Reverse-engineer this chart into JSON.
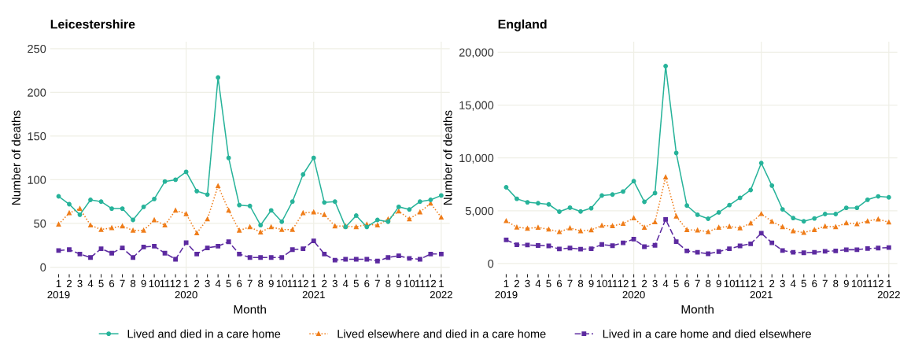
{
  "chart_data": [
    {
      "type": "line",
      "title": "Leicestershire",
      "xlabel": "Month",
      "ylabel": "Number of deaths",
      "categories": [
        "1\n2019",
        "2",
        "3",
        "4",
        "5",
        "6",
        "7",
        "8",
        "9",
        "10",
        "11",
        "12",
        "1\n2020",
        "2",
        "3",
        "4",
        "5",
        "6",
        "7",
        "8",
        "9",
        "10",
        "11",
        "12",
        "1\n2021",
        "2",
        "3",
        "4",
        "5",
        "6",
        "7",
        "8",
        "9",
        "10",
        "11",
        "12",
        "1\n2022"
      ],
      "series": [
        {
          "name": "Lived and died in a care home",
          "color": "#27b39a",
          "marker": "circle",
          "line_style": "solid",
          "values": [
            81,
            72,
            60,
            77,
            75,
            67,
            67,
            54,
            69,
            78,
            98,
            100,
            109,
            87,
            83,
            217,
            125,
            71,
            70,
            48,
            65,
            52,
            75,
            106,
            125,
            74,
            75,
            46,
            59,
            46,
            54,
            52,
            69,
            66,
            75,
            77,
            82
          ]
        },
        {
          "name": "Lived elsewhere and died in a care home",
          "color": "#ef7d1a",
          "marker": "triangle",
          "line_style": "dotted",
          "values": [
            49,
            62,
            67,
            48,
            43,
            45,
            47,
            42,
            42,
            54,
            48,
            65,
            61,
            39,
            55,
            93,
            65,
            42,
            46,
            40,
            46,
            43,
            43,
            62,
            63,
            60,
            47,
            47,
            46,
            49,
            48,
            55,
            64,
            55,
            63,
            73,
            57
          ]
        },
        {
          "name": "Lived in a care home and died elsewhere",
          "color": "#5c2aa0",
          "marker": "square",
          "line_style": "dashed",
          "values": [
            19,
            20,
            15,
            11,
            21,
            16,
            22,
            11,
            23,
            24,
            16,
            9,
            28,
            15,
            22,
            24,
            29,
            15,
            11,
            11,
            11,
            11,
            20,
            21,
            30,
            15,
            8,
            9,
            9,
            9,
            7,
            11,
            13,
            10,
            9,
            15,
            15
          ]
        }
      ],
      "ylim": [
        -8,
        258
      ],
      "yticks": [
        0,
        50,
        100,
        150,
        200,
        250
      ],
      "grid": "y",
      "ref_lines": [
        {
          "axis": "x",
          "value": "1\n2020",
          "color": "#efefe6"
        },
        {
          "axis": "x",
          "value": "1\n2021",
          "color": "#efefe6"
        },
        {
          "axis": "x",
          "value": "1\n2022",
          "color": "#efefe6"
        }
      ],
      "legend": "bottom"
    },
    {
      "type": "line",
      "title": "England",
      "xlabel": "Month",
      "ylabel": "Number of deaths",
      "categories": [
        "1\n2019",
        "2",
        "3",
        "4",
        "5",
        "6",
        "7",
        "8",
        "9",
        "10",
        "11",
        "12",
        "1\n2020",
        "2",
        "3",
        "4",
        "5",
        "6",
        "7",
        "8",
        "9",
        "10",
        "11",
        "12",
        "1\n2021",
        "2",
        "3",
        "4",
        "5",
        "6",
        "7",
        "8",
        "9",
        "10",
        "11",
        "12",
        "1\n2022"
      ],
      "series": [
        {
          "color": "#27b39a",
          "marker": "circle",
          "line_style": "solid",
          "values": [
            7220,
            6130,
            5800,
            5710,
            5600,
            4910,
            5290,
            4930,
            5240,
            6440,
            6530,
            6820,
            7800,
            5840,
            6670,
            18690,
            10470,
            5490,
            4620,
            4240,
            4840,
            5530,
            6220,
            6960,
            9510,
            7380,
            5130,
            4310,
            4000,
            4270,
            4690,
            4690,
            5270,
            5270,
            6040,
            6360,
            6270
          ]
        },
        {
          "color": "#ef7d1a",
          "marker": "triangle",
          "line_style": "dotted",
          "values": [
            4040,
            3440,
            3330,
            3420,
            3240,
            3000,
            3360,
            3090,
            3180,
            3600,
            3560,
            3780,
            4310,
            3420,
            3930,
            8180,
            4470,
            3200,
            3160,
            3000,
            3420,
            3510,
            3360,
            3820,
            4710,
            3980,
            3470,
            3090,
            2930,
            3200,
            3530,
            3470,
            3840,
            3760,
            4020,
            4200,
            3910
          ]
        },
        {
          "color": "#5c2aa0",
          "marker": "square",
          "line_style": "dashed",
          "values": [
            2240,
            1780,
            1760,
            1710,
            1670,
            1380,
            1470,
            1360,
            1400,
            1800,
            1690,
            1960,
            2310,
            1600,
            1730,
            4180,
            2070,
            1200,
            1070,
            930,
            1130,
            1400,
            1670,
            1870,
            2870,
            1960,
            1240,
            1070,
            1020,
            1070,
            1160,
            1200,
            1310,
            1310,
            1420,
            1470,
            1510
          ]
        }
      ],
      "ylim": [
        -1000,
        21000
      ],
      "yticks": [
        0,
        {
          "value": 5000,
          "label": "5,000"
        },
        {
          "value": 10000,
          "label": "10,000"
        },
        {
          "value": 15000,
          "label": "15,000"
        },
        {
          "value": 20000,
          "label": "20,000"
        }
      ],
      "grid": "y",
      "ref_lines": [
        {
          "axis": "x",
          "value": "1\n2020",
          "color": "#efefe6"
        },
        {
          "axis": "x",
          "value": "1\n2021",
          "color": "#efefe6"
        },
        {
          "axis": "x",
          "value": "1\n2022",
          "color": "#efefe6"
        }
      ],
      "legend": false
    }
  ]
}
